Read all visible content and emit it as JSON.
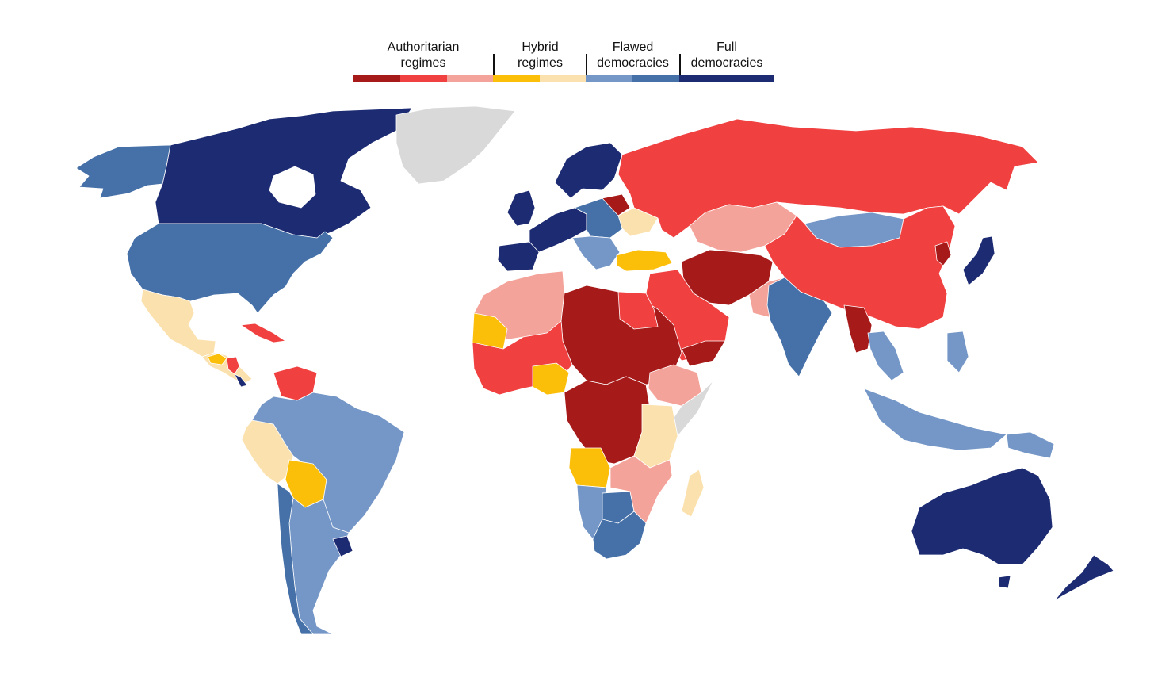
{
  "legend": {
    "groups": [
      {
        "key": "authoritarian",
        "label": "Authoritarian\nregimes"
      },
      {
        "key": "hybrid",
        "label": "Hybrid\nregimes"
      },
      {
        "key": "flawed",
        "label": "Flawed\ndemocracies"
      },
      {
        "key": "full",
        "label": "Full\ndemocracies"
      }
    ],
    "swatches": [
      {
        "group": "authoritarian",
        "color": "#a61a1a"
      },
      {
        "group": "authoritarian",
        "color": "#f04040"
      },
      {
        "group": "authoritarian",
        "color": "#f4a39a"
      },
      {
        "group": "hybrid",
        "color": "#fbbf0a"
      },
      {
        "group": "hybrid",
        "color": "#fbe1ad"
      },
      {
        "group": "flawed",
        "color": "#7597c7"
      },
      {
        "group": "flawed",
        "color": "#4570a8"
      },
      {
        "group": "full",
        "color": "#1c2b72"
      }
    ]
  },
  "colors": {
    "auth_dark": "#a61a1a",
    "auth_mid": "#f04040",
    "auth_light": "#f4a39a",
    "hybrid_dark": "#fbbf0a",
    "hybrid_light": "#fbe1ad",
    "flawed_light": "#7597c7",
    "flawed_dark": "#4570a8",
    "full": "#1c2b72",
    "no_data": "#d9d9d9"
  },
  "regions": [
    {
      "name": "canada",
      "category": "full"
    },
    {
      "name": "alaska",
      "category": "flawed_dark"
    },
    {
      "name": "united-states",
      "category": "flawed_dark"
    },
    {
      "name": "mexico",
      "category": "hybrid_light"
    },
    {
      "name": "greenland",
      "category": "no_data"
    },
    {
      "name": "central-america",
      "category": "hybrid_light"
    },
    {
      "name": "guatemala-honduras",
      "category": "hybrid_dark"
    },
    {
      "name": "nicaragua",
      "category": "auth_mid"
    },
    {
      "name": "costa-rica",
      "category": "full"
    },
    {
      "name": "cuba",
      "category": "auth_mid"
    },
    {
      "name": "venezuela",
      "category": "auth_mid"
    },
    {
      "name": "brazil",
      "category": "flawed_light"
    },
    {
      "name": "peru-ecuador",
      "category": "hybrid_light"
    },
    {
      "name": "bolivia",
      "category": "hybrid_dark"
    },
    {
      "name": "argentina-chile",
      "category": "flawed_light"
    },
    {
      "name": "chile",
      "category": "flawed_dark"
    },
    {
      "name": "uruguay",
      "category": "full"
    },
    {
      "name": "western-europe",
      "category": "full"
    },
    {
      "name": "uk-ireland",
      "category": "full"
    },
    {
      "name": "iberia",
      "category": "full"
    },
    {
      "name": "scandinavia",
      "category": "full"
    },
    {
      "name": "central-europe",
      "category": "flawed_dark"
    },
    {
      "name": "balkans",
      "category": "flawed_light"
    },
    {
      "name": "ukraine",
      "category": "hybrid_light"
    },
    {
      "name": "belarus",
      "category": "auth_dark"
    },
    {
      "name": "turkey",
      "category": "hybrid_dark"
    },
    {
      "name": "russia",
      "category": "auth_mid"
    },
    {
      "name": "kazakhstan",
      "category": "auth_light"
    },
    {
      "name": "mongolia",
      "category": "flawed_light"
    },
    {
      "name": "china",
      "category": "auth_mid"
    },
    {
      "name": "north-korea",
      "category": "auth_dark"
    },
    {
      "name": "japan",
      "category": "full"
    },
    {
      "name": "iran-afghanistan",
      "category": "auth_dark"
    },
    {
      "name": "pakistan",
      "category": "auth_light"
    },
    {
      "name": "arabia",
      "category": "auth_mid"
    },
    {
      "name": "yemen",
      "category": "auth_dark"
    },
    {
      "name": "india",
      "category": "flawed_dark"
    },
    {
      "name": "myanmar",
      "category": "auth_dark"
    },
    {
      "name": "thailand",
      "category": "flawed_light"
    },
    {
      "name": "indonesia",
      "category": "flawed_light"
    },
    {
      "name": "philippines",
      "category": "flawed_light"
    },
    {
      "name": "north-africa",
      "category": "auth_light"
    },
    {
      "name": "libya-chad-sudan",
      "category": "auth_dark"
    },
    {
      "name": "egypt",
      "category": "auth_mid"
    },
    {
      "name": "west-africa",
      "category": "auth_mid"
    },
    {
      "name": "mauritania",
      "category": "hybrid_dark"
    },
    {
      "name": "nigeria",
      "category": "hybrid_dark"
    },
    {
      "name": "central-africa",
      "category": "auth_dark"
    },
    {
      "name": "ethiopia",
      "category": "auth_light"
    },
    {
      "name": "somalia",
      "category": "no_data"
    },
    {
      "name": "east-africa",
      "category": "hybrid_light"
    },
    {
      "name": "angola",
      "category": "hybrid_dark"
    },
    {
      "name": "namibia",
      "category": "flawed_light"
    },
    {
      "name": "botswana",
      "category": "flawed_dark"
    },
    {
      "name": "south-africa",
      "category": "flawed_dark"
    },
    {
      "name": "mozambique-zimbabwe",
      "category": "auth_light"
    },
    {
      "name": "madagascar",
      "category": "hybrid_light"
    },
    {
      "name": "australia",
      "category": "full"
    },
    {
      "name": "new-zealand",
      "category": "full"
    },
    {
      "name": "papua-new-guinea",
      "category": "flawed_light"
    }
  ]
}
